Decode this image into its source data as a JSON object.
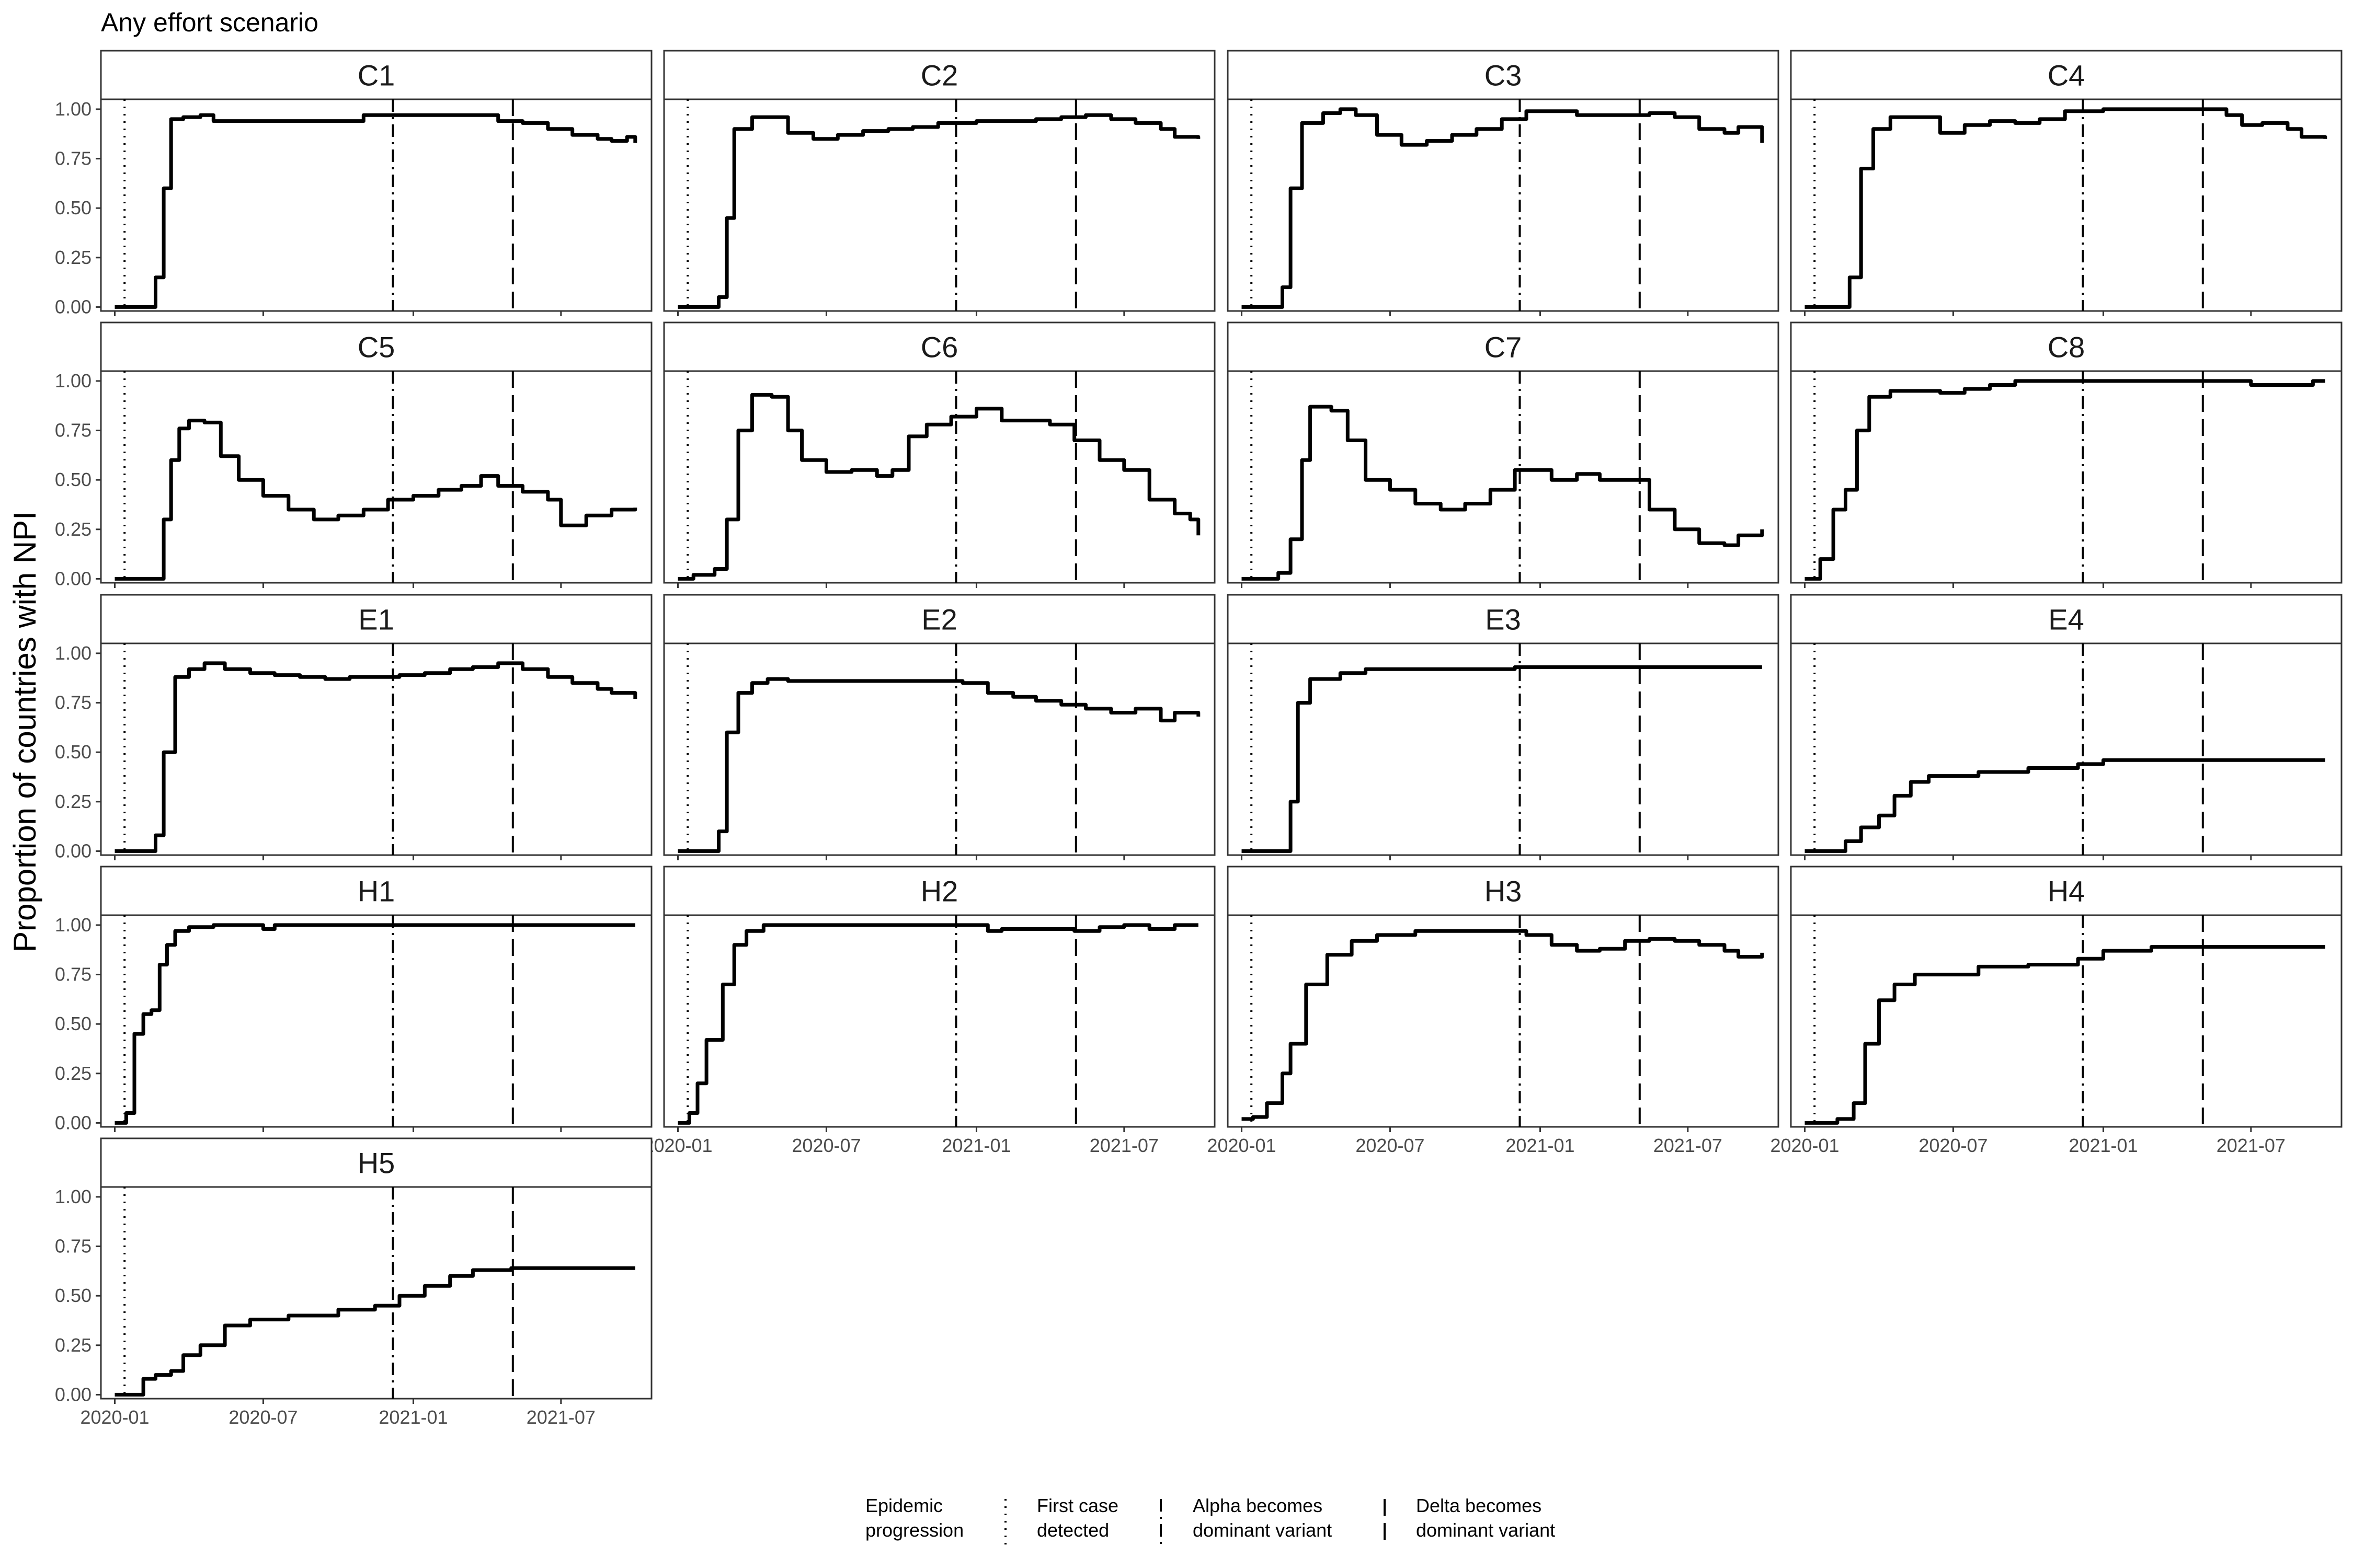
{
  "title": "Any effort scenario",
  "chart_data": {
    "type": "line",
    "title": "Any effort scenario",
    "xlabel": "",
    "ylabel": "Proportion of countries with NPI",
    "x_domain": [
      "2019-12-15",
      "2021-10-20"
    ],
    "ylim": [
      -0.02,
      1.05
    ],
    "yticks": [
      0.0,
      0.25,
      0.5,
      0.75,
      1.0
    ],
    "ytick_labels": [
      "0.00",
      "0.25",
      "0.50",
      "0.75",
      "1.00"
    ],
    "xticks": [
      "2020-01-01",
      "2020-07-01",
      "2021-01-01",
      "2021-07-01"
    ],
    "xtick_labels": [
      "2020-01",
      "2020-07",
      "2021-01",
      "2021-07"
    ],
    "grid": false,
    "legend_position": "bottom",
    "reference_lines": [
      {
        "label": "First case detected",
        "date": "2020-01-13",
        "linetype": "dotted"
      },
      {
        "label": "Alpha becomes dominant variant",
        "date": "2020-12-07",
        "linetype": "dotdash"
      },
      {
        "label": "Delta becomes dominant variant",
        "date": "2021-05-03",
        "linetype": "longdash"
      }
    ],
    "legend": {
      "title": "Epidemic\nprogression",
      "entries": [
        "First case\ndetected",
        "Alpha becomes\ndominant variant",
        "Delta becomes\ndominant variant"
      ]
    },
    "panels": [
      {
        "name": "C1",
        "x": [
          "2020-01-01",
          "2020-02-10",
          "2020-02-20",
          "2020-03-01",
          "2020-03-10",
          "2020-03-25",
          "2020-04-15",
          "2020-05-01",
          "2020-07-01",
          "2020-10-01",
          "2020-11-01",
          "2020-11-20",
          "2021-01-01",
          "2021-03-01",
          "2021-04-15",
          "2021-05-15",
          "2021-06-15",
          "2021-07-15",
          "2021-08-15",
          "2021-09-01",
          "2021-09-20",
          "2021-09-30"
        ],
        "y": [
          0.0,
          0.0,
          0.15,
          0.6,
          0.95,
          0.96,
          0.97,
          0.94,
          0.94,
          0.94,
          0.97,
          0.97,
          0.97,
          0.97,
          0.94,
          0.93,
          0.9,
          0.87,
          0.85,
          0.84,
          0.86,
          0.83
        ]
      },
      {
        "name": "C2",
        "x": [
          "2020-01-01",
          "2020-02-01",
          "2020-02-20",
          "2020-03-01",
          "2020-03-10",
          "2020-04-01",
          "2020-04-20",
          "2020-05-15",
          "2020-06-15",
          "2020-07-15",
          "2020-08-15",
          "2020-09-15",
          "2020-10-15",
          "2020-11-15",
          "2021-01-01",
          "2021-02-15",
          "2021-03-15",
          "2021-04-15",
          "2021-05-15",
          "2021-06-15",
          "2021-07-15",
          "2021-08-15",
          "2021-09-01",
          "2021-09-30"
        ],
        "y": [
          0.0,
          0.0,
          0.05,
          0.45,
          0.9,
          0.96,
          0.96,
          0.88,
          0.85,
          0.87,
          0.89,
          0.9,
          0.91,
          0.93,
          0.94,
          0.94,
          0.95,
          0.96,
          0.97,
          0.95,
          0.93,
          0.9,
          0.86,
          0.85
        ]
      },
      {
        "name": "C3",
        "x": [
          "2020-01-01",
          "2020-02-01",
          "2020-02-20",
          "2020-03-01",
          "2020-03-15",
          "2020-04-10",
          "2020-05-01",
          "2020-05-20",
          "2020-06-15",
          "2020-07-15",
          "2020-08-15",
          "2020-09-15",
          "2020-10-15",
          "2020-11-15",
          "2020-12-15",
          "2021-01-15",
          "2021-02-15",
          "2021-03-15",
          "2021-04-15",
          "2021-05-15",
          "2021-06-15",
          "2021-07-15",
          "2021-08-15",
          "2021-09-01",
          "2021-09-30"
        ],
        "y": [
          0.0,
          0.0,
          0.1,
          0.6,
          0.93,
          0.98,
          1.0,
          0.97,
          0.87,
          0.82,
          0.84,
          0.87,
          0.9,
          0.95,
          0.99,
          0.99,
          0.97,
          0.97,
          0.97,
          0.98,
          0.96,
          0.9,
          0.88,
          0.91,
          0.83
        ]
      },
      {
        "name": "C4",
        "x": [
          "2020-01-01",
          "2020-02-10",
          "2020-02-25",
          "2020-03-10",
          "2020-03-25",
          "2020-04-15",
          "2020-05-15",
          "2020-06-15",
          "2020-07-15",
          "2020-08-15",
          "2020-09-15",
          "2020-10-15",
          "2020-11-15",
          "2021-01-01",
          "2021-03-01",
          "2021-05-01",
          "2021-06-01",
          "2021-06-20",
          "2021-07-15",
          "2021-08-15",
          "2021-09-01",
          "2021-09-30"
        ],
        "y": [
          0.0,
          0.0,
          0.15,
          0.7,
          0.9,
          0.96,
          0.96,
          0.88,
          0.92,
          0.94,
          0.93,
          0.95,
          0.99,
          1.0,
          1.0,
          1.0,
          0.97,
          0.92,
          0.93,
          0.9,
          0.86,
          0.85
        ]
      },
      {
        "name": "C5",
        "x": [
          "2020-01-01",
          "2020-02-20",
          "2020-03-01",
          "2020-03-10",
          "2020-03-20",
          "2020-04-01",
          "2020-04-20",
          "2020-05-10",
          "2020-06-01",
          "2020-07-01",
          "2020-08-01",
          "2020-09-01",
          "2020-10-01",
          "2020-11-01",
          "2020-12-01",
          "2021-01-01",
          "2021-02-01",
          "2021-03-01",
          "2021-03-25",
          "2021-04-15",
          "2021-05-15",
          "2021-06-15",
          "2021-07-01",
          "2021-08-01",
          "2021-09-01",
          "2021-09-30"
        ],
        "y": [
          0.0,
          0.0,
          0.3,
          0.6,
          0.76,
          0.8,
          0.79,
          0.62,
          0.5,
          0.42,
          0.35,
          0.3,
          0.32,
          0.35,
          0.4,
          0.42,
          0.45,
          0.47,
          0.52,
          0.47,
          0.44,
          0.4,
          0.27,
          0.32,
          0.35,
          0.36
        ]
      },
      {
        "name": "C6",
        "x": [
          "2020-01-01",
          "2020-01-20",
          "2020-02-15",
          "2020-03-01",
          "2020-03-15",
          "2020-04-01",
          "2020-04-25",
          "2020-05-15",
          "2020-06-01",
          "2020-07-01",
          "2020-08-01",
          "2020-09-01",
          "2020-09-20",
          "2020-10-10",
          "2020-11-01",
          "2020-12-01",
          "2021-01-01",
          "2021-02-01",
          "2021-03-01",
          "2021-04-01",
          "2021-05-01",
          "2021-06-01",
          "2021-07-01",
          "2021-08-01",
          "2021-09-01",
          "2021-09-20",
          "2021-09-30"
        ],
        "y": [
          0.0,
          0.02,
          0.05,
          0.3,
          0.75,
          0.93,
          0.92,
          0.75,
          0.6,
          0.54,
          0.55,
          0.52,
          0.55,
          0.72,
          0.78,
          0.82,
          0.86,
          0.8,
          0.8,
          0.78,
          0.7,
          0.6,
          0.55,
          0.4,
          0.33,
          0.3,
          0.22
        ]
      },
      {
        "name": "C7",
        "x": [
          "2020-01-01",
          "2020-02-15",
          "2020-03-01",
          "2020-03-15",
          "2020-03-25",
          "2020-04-20",
          "2020-05-10",
          "2020-06-01",
          "2020-07-01",
          "2020-08-01",
          "2020-09-01",
          "2020-10-01",
          "2020-11-01",
          "2020-12-01",
          "2020-12-20",
          "2021-01-15",
          "2021-02-15",
          "2021-03-15",
          "2021-04-15",
          "2021-05-15",
          "2021-06-15",
          "2021-07-15",
          "2021-08-15",
          "2021-09-01",
          "2021-09-30"
        ],
        "y": [
          0.0,
          0.03,
          0.2,
          0.6,
          0.87,
          0.85,
          0.7,
          0.5,
          0.45,
          0.38,
          0.35,
          0.38,
          0.45,
          0.55,
          0.55,
          0.5,
          0.53,
          0.5,
          0.5,
          0.35,
          0.25,
          0.18,
          0.17,
          0.22,
          0.25
        ]
      },
      {
        "name": "C8",
        "x": [
          "2020-01-01",
          "2020-01-20",
          "2020-02-05",
          "2020-02-20",
          "2020-03-05",
          "2020-03-20",
          "2020-04-15",
          "2020-05-15",
          "2020-06-15",
          "2020-07-15",
          "2020-08-15",
          "2020-09-15",
          "2020-10-15",
          "2021-01-01",
          "2021-03-01",
          "2021-05-01",
          "2021-07-01",
          "2021-09-01",
          "2021-09-15",
          "2021-09-30"
        ],
        "y": [
          0.0,
          0.1,
          0.35,
          0.45,
          0.75,
          0.92,
          0.95,
          0.95,
          0.94,
          0.96,
          0.98,
          1.0,
          1.0,
          1.0,
          1.0,
          1.0,
          0.98,
          0.98,
          1.0,
          1.0
        ]
      },
      {
        "name": "E1",
        "x": [
          "2020-01-01",
          "2020-02-01",
          "2020-02-20",
          "2020-03-01",
          "2020-03-15",
          "2020-04-01",
          "2020-04-20",
          "2020-05-15",
          "2020-06-15",
          "2020-07-15",
          "2020-08-15",
          "2020-09-15",
          "2020-10-15",
          "2020-11-15",
          "2020-12-15",
          "2021-01-15",
          "2021-02-15",
          "2021-03-15",
          "2021-04-15",
          "2021-05-15",
          "2021-06-15",
          "2021-07-15",
          "2021-08-15",
          "2021-09-01",
          "2021-09-30"
        ],
        "y": [
          0.0,
          0.0,
          0.08,
          0.5,
          0.88,
          0.92,
          0.95,
          0.92,
          0.9,
          0.89,
          0.88,
          0.87,
          0.88,
          0.88,
          0.89,
          0.9,
          0.92,
          0.93,
          0.95,
          0.92,
          0.88,
          0.85,
          0.82,
          0.8,
          0.77
        ]
      },
      {
        "name": "E2",
        "x": [
          "2020-01-01",
          "2020-02-01",
          "2020-02-20",
          "2020-03-01",
          "2020-03-15",
          "2020-04-01",
          "2020-04-20",
          "2020-05-15",
          "2020-07-01",
          "2020-09-01",
          "2020-11-01",
          "2020-12-15",
          "2021-01-15",
          "2021-02-15",
          "2021-03-15",
          "2021-04-15",
          "2021-05-15",
          "2021-06-15",
          "2021-07-15",
          "2021-08-15",
          "2021-09-01",
          "2021-09-30"
        ],
        "y": [
          0.0,
          0.0,
          0.1,
          0.6,
          0.8,
          0.85,
          0.87,
          0.86,
          0.86,
          0.86,
          0.86,
          0.85,
          0.8,
          0.78,
          0.76,
          0.74,
          0.72,
          0.7,
          0.72,
          0.66,
          0.7,
          0.68
        ]
      },
      {
        "name": "E3",
        "x": [
          "2020-01-01",
          "2020-02-15",
          "2020-03-01",
          "2020-03-10",
          "2020-03-25",
          "2020-05-01",
          "2020-06-01",
          "2020-09-01",
          "2020-12-01",
          "2021-03-01",
          "2021-06-01",
          "2021-09-30"
        ],
        "y": [
          0.0,
          0.0,
          0.25,
          0.75,
          0.87,
          0.9,
          0.92,
          0.92,
          0.93,
          0.93,
          0.93,
          0.93
        ]
      },
      {
        "name": "E4",
        "x": [
          "2020-01-01",
          "2020-02-01",
          "2020-02-20",
          "2020-03-10",
          "2020-04-01",
          "2020-04-20",
          "2020-05-10",
          "2020-06-01",
          "2020-07-01",
          "2020-08-01",
          "2020-10-01",
          "2020-12-01",
          "2021-01-01",
          "2021-03-01",
          "2021-06-01",
          "2021-09-30"
        ],
        "y": [
          0.0,
          0.0,
          0.05,
          0.12,
          0.18,
          0.28,
          0.35,
          0.38,
          0.38,
          0.4,
          0.42,
          0.44,
          0.46,
          0.46,
          0.46,
          0.46
        ]
      },
      {
        "name": "H1",
        "x": [
          "2020-01-01",
          "2020-01-15",
          "2020-01-25",
          "2020-02-05",
          "2020-02-15",
          "2020-02-25",
          "2020-03-05",
          "2020-03-15",
          "2020-04-01",
          "2020-05-01",
          "2020-07-01",
          "2020-07-15",
          "2020-08-01",
          "2021-01-01",
          "2021-06-01",
          "2021-09-30"
        ],
        "y": [
          0.0,
          0.05,
          0.45,
          0.55,
          0.57,
          0.8,
          0.9,
          0.97,
          0.99,
          1.0,
          0.98,
          1.0,
          1.0,
          1.0,
          1.0,
          1.0
        ]
      },
      {
        "name": "H2",
        "x": [
          "2020-01-01",
          "2020-01-15",
          "2020-01-25",
          "2020-02-05",
          "2020-02-15",
          "2020-02-25",
          "2020-03-10",
          "2020-03-25",
          "2020-04-15",
          "2020-06-01",
          "2020-09-01",
          "2020-12-01",
          "2021-01-15",
          "2021-02-01",
          "2021-03-01",
          "2021-04-01",
          "2021-05-01",
          "2021-06-01",
          "2021-07-01",
          "2021-08-01",
          "2021-09-01",
          "2021-09-30"
        ],
        "y": [
          0.0,
          0.05,
          0.2,
          0.42,
          0.42,
          0.7,
          0.9,
          0.97,
          1.0,
          1.0,
          1.0,
          1.0,
          0.97,
          0.98,
          0.98,
          0.98,
          0.97,
          0.99,
          1.0,
          0.98,
          1.0,
          1.0
        ]
      },
      {
        "name": "H3",
        "x": [
          "2020-01-01",
          "2020-01-15",
          "2020-02-01",
          "2020-02-20",
          "2020-03-01",
          "2020-03-20",
          "2020-04-15",
          "2020-05-15",
          "2020-06-15",
          "2020-08-01",
          "2020-10-01",
          "2020-11-15",
          "2020-12-15",
          "2021-01-15",
          "2021-02-15",
          "2021-03-15",
          "2021-04-15",
          "2021-05-15",
          "2021-06-15",
          "2021-07-15",
          "2021-08-15",
          "2021-09-01",
          "2021-09-30"
        ],
        "y": [
          0.02,
          0.03,
          0.1,
          0.25,
          0.4,
          0.7,
          0.85,
          0.92,
          0.95,
          0.97,
          0.97,
          0.97,
          0.95,
          0.9,
          0.87,
          0.88,
          0.92,
          0.93,
          0.92,
          0.9,
          0.87,
          0.84,
          0.86
        ]
      },
      {
        "name": "H4",
        "x": [
          "2020-01-01",
          "2020-02-10",
          "2020-03-01",
          "2020-03-15",
          "2020-04-01",
          "2020-04-20",
          "2020-05-15",
          "2020-06-15",
          "2020-08-01",
          "2020-10-01",
          "2020-12-01",
          "2021-01-01",
          "2021-03-01",
          "2021-06-01",
          "2021-09-30"
        ],
        "y": [
          0.0,
          0.02,
          0.1,
          0.4,
          0.62,
          0.7,
          0.75,
          0.75,
          0.79,
          0.8,
          0.83,
          0.87,
          0.89,
          0.89,
          0.89
        ]
      },
      {
        "name": "H5",
        "x": [
          "2020-01-01",
          "2020-01-25",
          "2020-02-05",
          "2020-02-20",
          "2020-03-10",
          "2020-03-25",
          "2020-04-15",
          "2020-05-15",
          "2020-06-15",
          "2020-08-01",
          "2020-10-01",
          "2020-11-15",
          "2020-12-15",
          "2021-01-15",
          "2021-02-15",
          "2021-03-15",
          "2021-05-01",
          "2021-06-01",
          "2021-09-30"
        ],
        "y": [
          0.0,
          0.0,
          0.08,
          0.1,
          0.12,
          0.2,
          0.25,
          0.35,
          0.38,
          0.4,
          0.43,
          0.45,
          0.5,
          0.55,
          0.6,
          0.63,
          0.64,
          0.64,
          0.64
        ]
      }
    ]
  }
}
